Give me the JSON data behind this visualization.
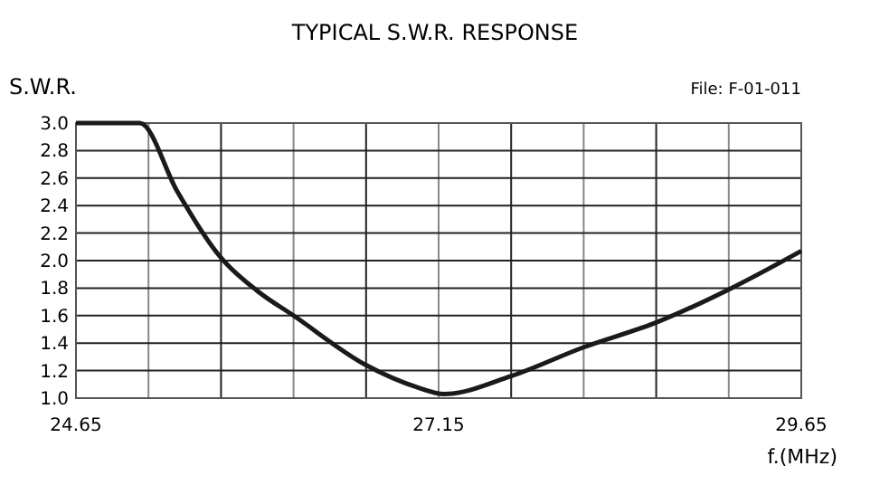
{
  "chart_data": {
    "type": "line",
    "title": "TYPICAL S.W.R. RESPONSE",
    "ylabel": "S.W.R.",
    "xlabel": "f.(MHz)",
    "annotations": [
      "File: F-01-011"
    ],
    "x": [
      24.65,
      25.09,
      25.35,
      25.65,
      25.9,
      26.15,
      26.65,
      27.0,
      27.19,
      27.65,
      28.15,
      28.65,
      29.15,
      29.65
    ],
    "series": [
      {
        "color": "#1a1a1a",
        "values": [
          3.0,
          3.0,
          2.5,
          2.02,
          1.78,
          1.6,
          1.24,
          1.08,
          1.03,
          1.16,
          1.37,
          1.55,
          1.79,
          2.07
        ]
      }
    ],
    "xlim": [
      24.65,
      29.65
    ],
    "xticks": [
      24.65,
      {
        "value": 25.15,
        "label": null
      },
      {
        "value": 25.65,
        "label": null
      },
      {
        "value": 26.15,
        "label": null
      },
      {
        "value": 26.65,
        "label": null
      },
      27.15,
      {
        "value": 27.65,
        "label": null
      },
      {
        "value": 28.15,
        "label": null
      },
      {
        "value": 28.65,
        "label": null
      },
      {
        "value": 29.15,
        "label": null
      },
      29.65
    ],
    "ylim": [
      1.0,
      3.0
    ],
    "yticks": [
      {
        "value": 1,
        "label": "1.0"
      },
      {
        "value": 1.2,
        "label": "1.2"
      },
      {
        "value": 1.4,
        "label": "1.4"
      },
      {
        "value": 1.6,
        "label": "1.6"
      },
      {
        "value": 1.8,
        "label": "1.8"
      },
      {
        "value": 2,
        "label": "2.0"
      },
      {
        "value": 2.2,
        "label": "2.2"
      },
      {
        "value": 2.4,
        "label": "2.4"
      },
      {
        "value": 2.6,
        "label": "2.6"
      },
      {
        "value": 2.8,
        "label": "2.8"
      },
      {
        "value": 3,
        "label": "3.0"
      }
    ],
    "grid": true,
    "marker": "none",
    "line_style": "solid"
  }
}
